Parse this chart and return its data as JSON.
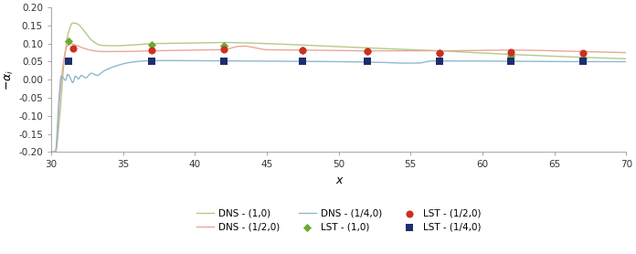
{
  "xlabel": "x",
  "ylabel": "$-\\alpha_i$",
  "xlim": [
    30,
    70
  ],
  "ylim": [
    -0.2,
    0.2
  ],
  "yticks": [
    -0.2,
    -0.15,
    -0.1,
    -0.05,
    0.0,
    0.05,
    0.1,
    0.15,
    0.2
  ],
  "xticks": [
    30,
    35,
    40,
    45,
    50,
    55,
    60,
    65,
    70
  ],
  "bg_color": "#ffffff",
  "colors": {
    "dns_10": "#b5c98a",
    "dns_120": "#e8a898",
    "dns_140": "#90b8d0",
    "lst_10": "#6aaa30",
    "lst_120": "#cc3020",
    "lst_140": "#1e2e6e"
  },
  "lst_10_x": [
    31.2,
    37.0,
    42.0,
    47.5,
    52.0,
    57.0,
    62.0,
    67.0
  ],
  "lst_10_y": [
    0.108,
    0.098,
    0.094,
    0.082,
    0.078,
    0.074,
    0.067,
    0.059
  ],
  "lst_120_x": [
    31.5,
    37.0,
    42.0,
    47.5,
    52.0,
    57.0,
    62.0,
    67.0
  ],
  "lst_120_y": [
    0.086,
    0.082,
    0.083,
    0.082,
    0.078,
    0.075,
    0.076,
    0.074
  ],
  "lst_140_x": [
    31.2,
    37.0,
    42.0,
    47.5,
    52.0,
    57.0,
    62.0,
    67.0
  ],
  "lst_140_y": [
    0.05,
    0.05,
    0.05,
    0.05,
    0.05,
    0.05,
    0.05,
    0.05
  ],
  "legend_labels": [
    "DNS - (1,0)",
    "DNS - (1/2,0)",
    "DNS - (1/4,0)",
    "LST - (1,0)",
    "LST - (1/2,0)",
    "LST - (1/4,0)"
  ]
}
